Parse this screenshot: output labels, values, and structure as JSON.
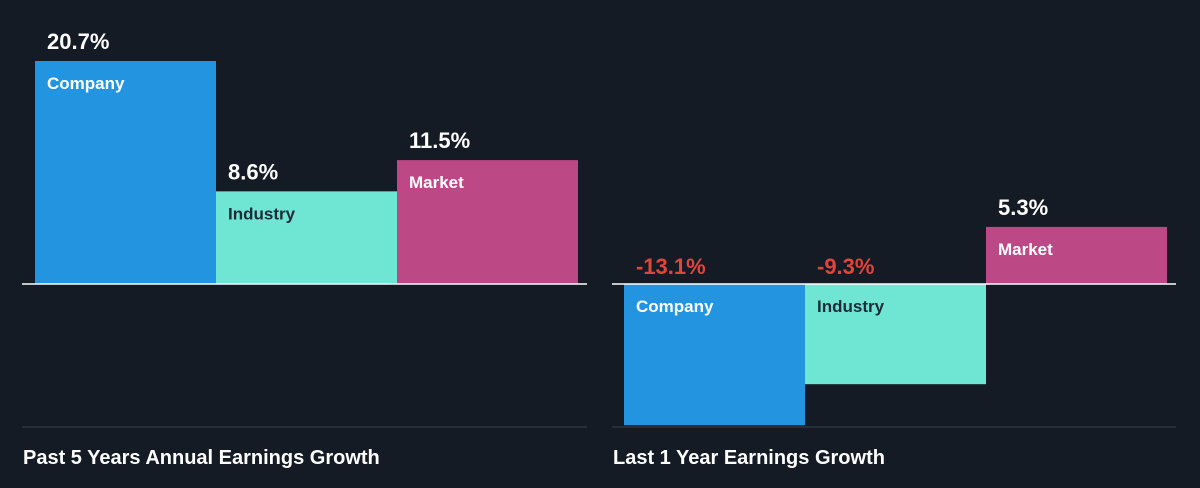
{
  "colors": {
    "background": "#151b24",
    "company": "#2394e0",
    "industry": "#6fe6d4",
    "market": "#bd4886",
    "positive_text": "#ffffff",
    "negative_text": "#e0453c",
    "label_on_dark": "#ffffff",
    "label_on_light": "#1f2a36",
    "axis_line": "#ffffff",
    "baseline": "#3a414b"
  },
  "chart_data": [
    {
      "type": "bar",
      "title": "Past 5 Years Annual Earnings Growth",
      "categories": [
        "Company",
        "Industry",
        "Market"
      ],
      "values": [
        20.7,
        8.6,
        11.5
      ],
      "value_labels": [
        "20.7%",
        "8.6%",
        "11.5%"
      ],
      "unit": "%",
      "ylim": [
        -13.1,
        20.7
      ],
      "grid": false,
      "legend": "none"
    },
    {
      "type": "bar",
      "title": "Last 1 Year Earnings Growth",
      "categories": [
        "Company",
        "Industry",
        "Market"
      ],
      "values": [
        -13.1,
        -9.3,
        5.3
      ],
      "value_labels": [
        "-13.1%",
        "-9.3%",
        "5.3%"
      ],
      "unit": "%",
      "ylim": [
        -13.1,
        20.7
      ],
      "grid": false,
      "legend": "none"
    }
  ]
}
